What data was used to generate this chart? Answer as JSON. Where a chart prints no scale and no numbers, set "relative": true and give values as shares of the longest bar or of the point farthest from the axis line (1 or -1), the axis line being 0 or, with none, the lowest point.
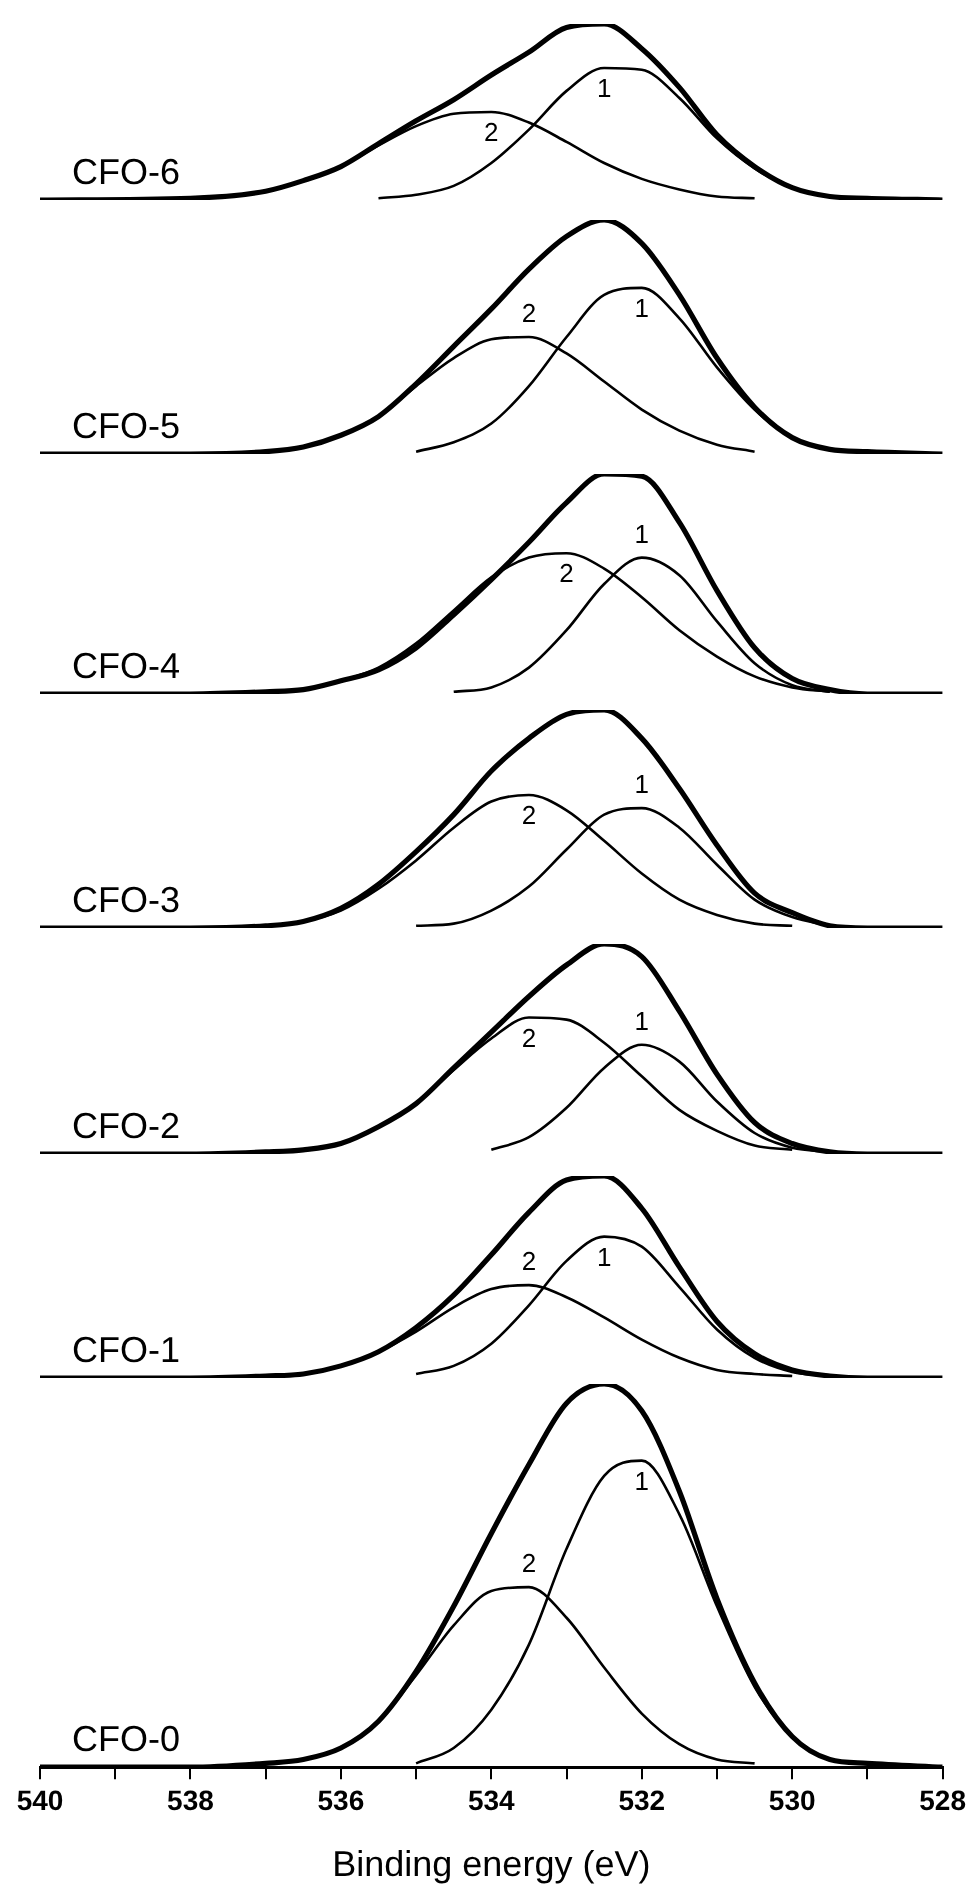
{
  "chart_data": [
    {
      "type": "line",
      "title": "CFO-6",
      "relative": true,
      "xlim": [
        540,
        528
      ],
      "tick_labels": false,
      "x": [
        540,
        538,
        537,
        536.5,
        536,
        535.5,
        535,
        534.5,
        534,
        533.5,
        533,
        532.5,
        532,
        531.5,
        531,
        530.5,
        530,
        529.5,
        529,
        528
      ],
      "series": [
        {
          "color": "#000000",
          "values": [
            0,
            0.01,
            0.05,
            0.11,
            0.19,
            0.32,
            0.45,
            0.57,
            0.71,
            0.84,
            0.98,
            1.0,
            0.86,
            0.64,
            0.37,
            0.19,
            0.07,
            0.02,
            0.01,
            0
          ]
        },
        {
          "name": "1",
          "color": "#000000",
          "values": [
            null,
            null,
            null,
            null,
            null,
            0.01,
            0.03,
            0.08,
            0.21,
            0.4,
            0.62,
            0.75,
            0.74,
            0.58,
            0.35,
            0.18,
            0.07,
            0.02,
            0.01,
            null
          ]
        },
        {
          "name": "2",
          "color": "#000000",
          "values": [
            null,
            0.01,
            0.05,
            0.11,
            0.19,
            0.31,
            0.42,
            0.49,
            0.5,
            0.44,
            0.33,
            0.21,
            0.12,
            0.06,
            0.02,
            0.01,
            null,
            null,
            null,
            null
          ]
        }
      ]
    },
    {
      "type": "line",
      "title": "CFO-5",
      "relative": true,
      "xlim": [
        540,
        528
      ],
      "tick_labels": false,
      "x": [
        540,
        538,
        537,
        536.5,
        536,
        535.5,
        535,
        534.5,
        534,
        533.5,
        533,
        532.5,
        532,
        531.5,
        531,
        530.5,
        530,
        529.5,
        529,
        528
      ],
      "series": [
        {
          "color": "#000000",
          "values": [
            0,
            0,
            0.01,
            0.03,
            0.08,
            0.16,
            0.3,
            0.46,
            0.62,
            0.79,
            0.93,
            1.0,
            0.9,
            0.68,
            0.41,
            0.2,
            0.07,
            0.02,
            0.01,
            0
          ]
        },
        {
          "name": "1",
          "color": "#000000",
          "values": [
            null,
            null,
            null,
            null,
            null,
            null,
            0.01,
            0.05,
            0.13,
            0.29,
            0.5,
            0.68,
            0.71,
            0.58,
            0.37,
            0.19,
            0.07,
            0.02,
            0.01,
            null
          ]
        },
        {
          "name": "2",
          "color": "#000000",
          "values": [
            null,
            null,
            0.01,
            0.03,
            0.08,
            0.16,
            0.29,
            0.41,
            0.49,
            0.5,
            0.43,
            0.31,
            0.19,
            0.1,
            0.04,
            0.01,
            null,
            null,
            null,
            null
          ]
        }
      ]
    },
    {
      "type": "line",
      "title": "CFO-4",
      "relative": true,
      "xlim": [
        540,
        528
      ],
      "tick_labels": false,
      "x": [
        540,
        538,
        537,
        536.5,
        536,
        535.5,
        535,
        534.5,
        534,
        533.5,
        533,
        532.5,
        532,
        531.5,
        531,
        530.5,
        530,
        529.5,
        529,
        528
      ],
      "series": [
        {
          "color": "#000000",
          "values": [
            0,
            0,
            0.01,
            0.02,
            0.06,
            0.11,
            0.21,
            0.36,
            0.52,
            0.69,
            0.87,
            1.0,
            0.99,
            0.78,
            0.47,
            0.21,
            0.07,
            0.02,
            0,
            0
          ]
        },
        {
          "name": "1",
          "color": "#000000",
          "values": [
            null,
            null,
            null,
            null,
            null,
            null,
            null,
            0.01,
            0.03,
            0.12,
            0.29,
            0.5,
            0.62,
            0.54,
            0.33,
            0.14,
            0.04,
            0.01,
            null,
            null
          ]
        },
        {
          "name": "2",
          "color": "#000000",
          "values": [
            null,
            null,
            0.01,
            0.02,
            0.06,
            0.12,
            0.23,
            0.38,
            0.53,
            0.62,
            0.64,
            0.57,
            0.44,
            0.29,
            0.17,
            0.08,
            0.03,
            0.01,
            null,
            null
          ]
        }
      ]
    },
    {
      "type": "line",
      "title": "CFO-3",
      "relative": true,
      "xlim": [
        540,
        528
      ],
      "tick_labels": false,
      "x": [
        540,
        538,
        537,
        536.5,
        536,
        535.5,
        535,
        534.5,
        534,
        533.5,
        533,
        532.5,
        532,
        531.5,
        531,
        530.5,
        530,
        529.5,
        529,
        528
      ],
      "series": [
        {
          "color": "#000000",
          "values": [
            0,
            0,
            0.01,
            0.03,
            0.09,
            0.2,
            0.35,
            0.52,
            0.72,
            0.87,
            0.98,
            1.0,
            0.87,
            0.64,
            0.38,
            0.16,
            0.07,
            0.01,
            0,
            0
          ]
        },
        {
          "name": "1",
          "color": "#000000",
          "values": [
            null,
            null,
            null,
            null,
            null,
            null,
            0.01,
            0.02,
            0.08,
            0.19,
            0.36,
            0.52,
            0.55,
            0.46,
            0.29,
            0.13,
            0.05,
            0.01,
            null,
            null
          ]
        },
        {
          "name": "2",
          "color": "#000000",
          "values": [
            null,
            null,
            0.01,
            0.03,
            0.08,
            0.18,
            0.31,
            0.46,
            0.58,
            0.61,
            0.54,
            0.4,
            0.25,
            0.13,
            0.06,
            0.02,
            0.01,
            null,
            null,
            null
          ]
        }
      ]
    },
    {
      "type": "line",
      "title": "CFO-2",
      "relative": true,
      "xlim": [
        540,
        528
      ],
      "tick_labels": false,
      "x": [
        540,
        538,
        537,
        536.5,
        536,
        535.5,
        535,
        534.5,
        534,
        533.5,
        533,
        532.5,
        532,
        531.5,
        531,
        530.5,
        530,
        529.5,
        529,
        528
      ],
      "series": [
        {
          "color": "#000000",
          "values": [
            0,
            0,
            0.01,
            0.02,
            0.05,
            0.13,
            0.24,
            0.41,
            0.58,
            0.75,
            0.9,
            1.0,
            0.94,
            0.68,
            0.38,
            0.15,
            0.05,
            0.01,
            0,
            0
          ]
        },
        {
          "name": "1",
          "color": "#000000",
          "values": [
            null,
            null,
            null,
            null,
            null,
            null,
            null,
            null,
            0.02,
            0.08,
            0.22,
            0.41,
            0.52,
            0.44,
            0.25,
            0.1,
            0.03,
            0.01,
            null,
            null
          ]
        },
        {
          "name": "2",
          "color": "#000000",
          "values": [
            null,
            null,
            0.01,
            0.02,
            0.05,
            0.13,
            0.24,
            0.4,
            0.55,
            0.65,
            0.64,
            0.53,
            0.37,
            0.21,
            0.11,
            0.04,
            0.02,
            null,
            null,
            null
          ]
        }
      ]
    },
    {
      "type": "line",
      "title": "CFO-1",
      "relative": true,
      "xlim": [
        540,
        528
      ],
      "tick_labels": false,
      "x": [
        540,
        538,
        537,
        536.5,
        536,
        535.5,
        535,
        534.5,
        534,
        533.5,
        533,
        532.5,
        532,
        531.5,
        531,
        530.5,
        530,
        529.5,
        529,
        528
      ],
      "series": [
        {
          "color": "#000000",
          "values": [
            0,
            0,
            0.01,
            0.02,
            0.06,
            0.13,
            0.25,
            0.41,
            0.61,
            0.82,
            0.98,
            1.0,
            0.84,
            0.55,
            0.28,
            0.12,
            0.04,
            0.01,
            0,
            0
          ]
        },
        {
          "name": "1",
          "color": "#000000",
          "values": [
            null,
            null,
            null,
            null,
            null,
            null,
            0.02,
            0.06,
            0.17,
            0.36,
            0.58,
            0.7,
            0.65,
            0.45,
            0.24,
            0.1,
            0.03,
            0.01,
            null,
            null
          ]
        },
        {
          "name": "2",
          "color": "#000000",
          "values": [
            null,
            null,
            0.01,
            0.02,
            0.06,
            0.13,
            0.23,
            0.35,
            0.44,
            0.46,
            0.4,
            0.3,
            0.19,
            0.1,
            0.04,
            0.02,
            0.01,
            null,
            null,
            null
          ]
        }
      ]
    },
    {
      "type": "line",
      "title": "CFO-0",
      "relative": true,
      "xlabel": "Binding energy (eV)",
      "xlim": [
        540,
        528
      ],
      "tick_labels": "x",
      "xticks": [
        540,
        {
          "value": 539,
          "label": null
        },
        538,
        {
          "value": 537,
          "label": null
        },
        536,
        {
          "value": 535,
          "label": null
        },
        534,
        {
          "value": 533,
          "label": null
        },
        532,
        {
          "value": 531,
          "label": null
        },
        530,
        {
          "value": 529,
          "label": null
        },
        528
      ],
      "x": [
        540,
        538,
        537,
        536.5,
        536,
        535.5,
        535,
        534.5,
        534,
        533.5,
        533,
        532.5,
        532,
        531.5,
        531,
        530.5,
        530,
        529.5,
        529,
        528
      ],
      "series": [
        {
          "color": "#000000",
          "values": [
            0,
            0,
            0.01,
            0.02,
            0.05,
            0.12,
            0.25,
            0.42,
            0.61,
            0.79,
            0.95,
            1.0,
            0.93,
            0.72,
            0.44,
            0.22,
            0.08,
            0.02,
            0.01,
            0
          ]
        },
        {
          "name": "1",
          "color": "#000000",
          "values": [
            null,
            null,
            null,
            null,
            null,
            null,
            0.01,
            0.05,
            0.15,
            0.32,
            0.57,
            0.76,
            0.8,
            0.66,
            0.42,
            0.21,
            0.08,
            0.02,
            0.01,
            null
          ]
        },
        {
          "name": "2",
          "color": "#000000",
          "values": [
            null,
            null,
            0.01,
            0.02,
            0.05,
            0.12,
            0.24,
            0.37,
            0.46,
            0.47,
            0.39,
            0.26,
            0.14,
            0.06,
            0.02,
            0.01,
            null,
            null,
            null,
            null
          ]
        }
      ]
    }
  ]
}
